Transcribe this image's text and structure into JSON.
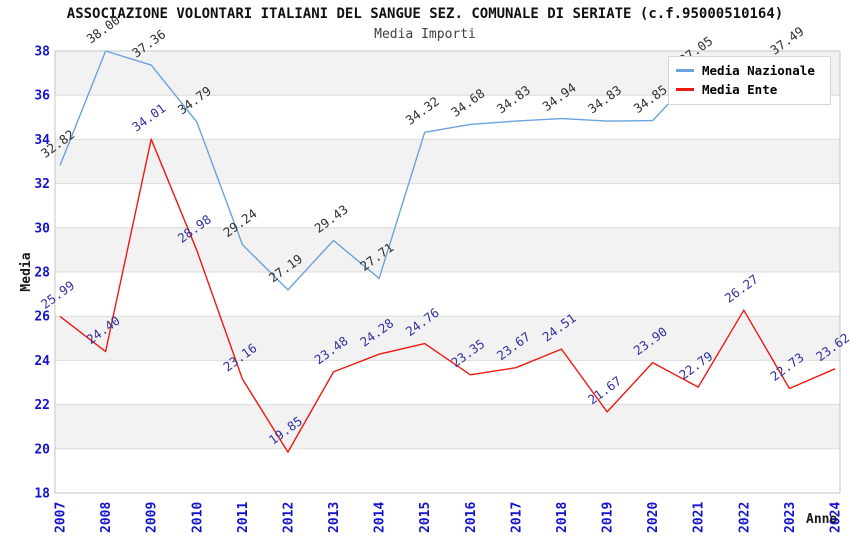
{
  "chart_data": {
    "type": "line",
    "title": "ASSOCIAZIONE VOLONTARI ITALIANI DEL SANGUE SEZ. COMUNALE DI SERIATE (c.f.95000510164)",
    "subtitle": "Media Importi",
    "xlabel": "Anno",
    "ylabel": "Media",
    "x": [
      2007,
      2008,
      2009,
      2010,
      2011,
      2012,
      2013,
      2014,
      2015,
      2016,
      2017,
      2018,
      2019,
      2020,
      2021,
      2022,
      2023,
      2024
    ],
    "series": [
      {
        "name": "Media Nazionale",
        "color": "#6BA3DC",
        "label_color": "#303030",
        "values": [
          32.82,
          38.0,
          37.36,
          34.79,
          29.24,
          27.19,
          29.43,
          27.71,
          34.32,
          34.68,
          34.83,
          34.94,
          34.83,
          34.85,
          37.05,
          null,
          37.49,
          null
        ]
      },
      {
        "name": "Media Ente",
        "color": "#EE1A12",
        "label_color": "#32329E",
        "values": [
          25.99,
          24.4,
          34.01,
          28.98,
          23.16,
          19.85,
          23.48,
          24.28,
          24.76,
          23.35,
          23.67,
          24.51,
          21.67,
          23.9,
          22.79,
          26.27,
          22.73,
          23.62
        ]
      }
    ],
    "ylim": [
      18,
      38
    ],
    "ytick_step": 2,
    "yticks": [
      18,
      20,
      22,
      24,
      26,
      28,
      30,
      32,
      34,
      36,
      38
    ],
    "grid": "horizontal-stripes",
    "stripe_bands_low_edges": [
      20,
      24,
      28,
      32,
      36
    ],
    "legend_position": "top-right",
    "colors": {
      "axis_tick_text": "#1414CC",
      "stripe_fill": "#F2F2F2",
      "gridline": "#DCDCDC",
      "plot_border": "#C6C6C6"
    },
    "label_decimals": 2
  }
}
